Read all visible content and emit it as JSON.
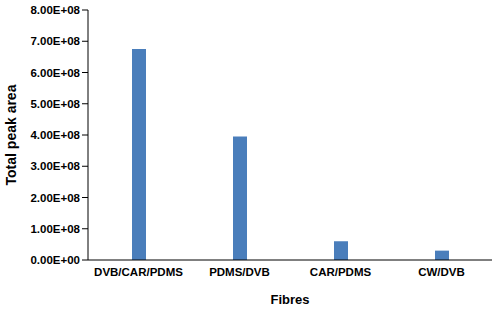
{
  "chart_data": {
    "type": "bar",
    "categories": [
      "DVB/CAR/PDMS",
      "PDMS/DVB",
      "CAR/PDMS",
      "CW/DVB"
    ],
    "values": [
      675000000,
      395000000,
      60000000,
      30000000
    ],
    "color": "#4a7ebb",
    "x_label": "Fibres",
    "y_label": "Total peak area",
    "ylim": [
      0,
      800000000
    ],
    "yticks": [
      {
        "value": 0,
        "label": "0.00E+00"
      },
      {
        "value": 100000000,
        "label": "1.00E+08"
      },
      {
        "value": 200000000,
        "label": "2.00E+08"
      },
      {
        "value": 300000000,
        "label": "3.00E+08"
      },
      {
        "value": 400000000,
        "label": "4.00E+08"
      },
      {
        "value": 500000000,
        "label": "5.00E+08"
      },
      {
        "value": 600000000,
        "label": "6.00E+08"
      },
      {
        "value": 700000000,
        "label": "7.00E+08"
      },
      {
        "value": 800000000,
        "label": "8.00E+08"
      }
    ],
    "grid": false
  }
}
